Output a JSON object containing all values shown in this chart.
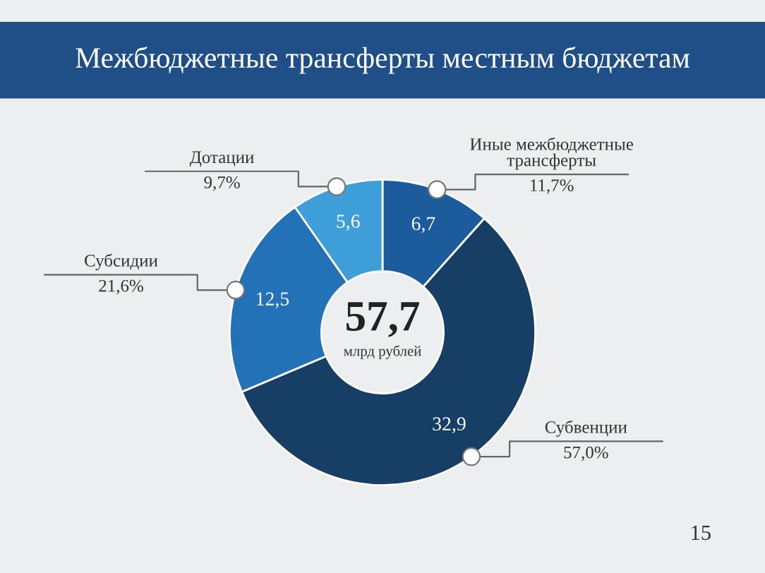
{
  "chart_data": {
    "type": "donut",
    "title": "Межбюджетные трансферты местным бюджетам",
    "categories": [
      "Иные межбюджетные\nтрансферты",
      "Субвенции",
      "Субсидии",
      "Дотации"
    ],
    "values": [
      6.7,
      32.9,
      12.5,
      5.6
    ],
    "value_labels": [
      "6,7",
      "32,9",
      "12,5",
      "5,6"
    ],
    "colors": [
      "#1c5c9c",
      "#173f65",
      "#2371b6",
      "#3e9fd8"
    ],
    "totals": [
      "57,7"
    ],
    "annotations": [
      {
        "text": "11,7%",
        "x": "Иные межбюджетные\nтрансферты"
      },
      {
        "text": "57,0%",
        "x": "Субвенции"
      },
      {
        "text": "21,6%",
        "x": "Субсидии"
      },
      {
        "text": "9,7%",
        "x": "Дотации"
      },
      "млрд рублей",
      "15"
    ]
  }
}
